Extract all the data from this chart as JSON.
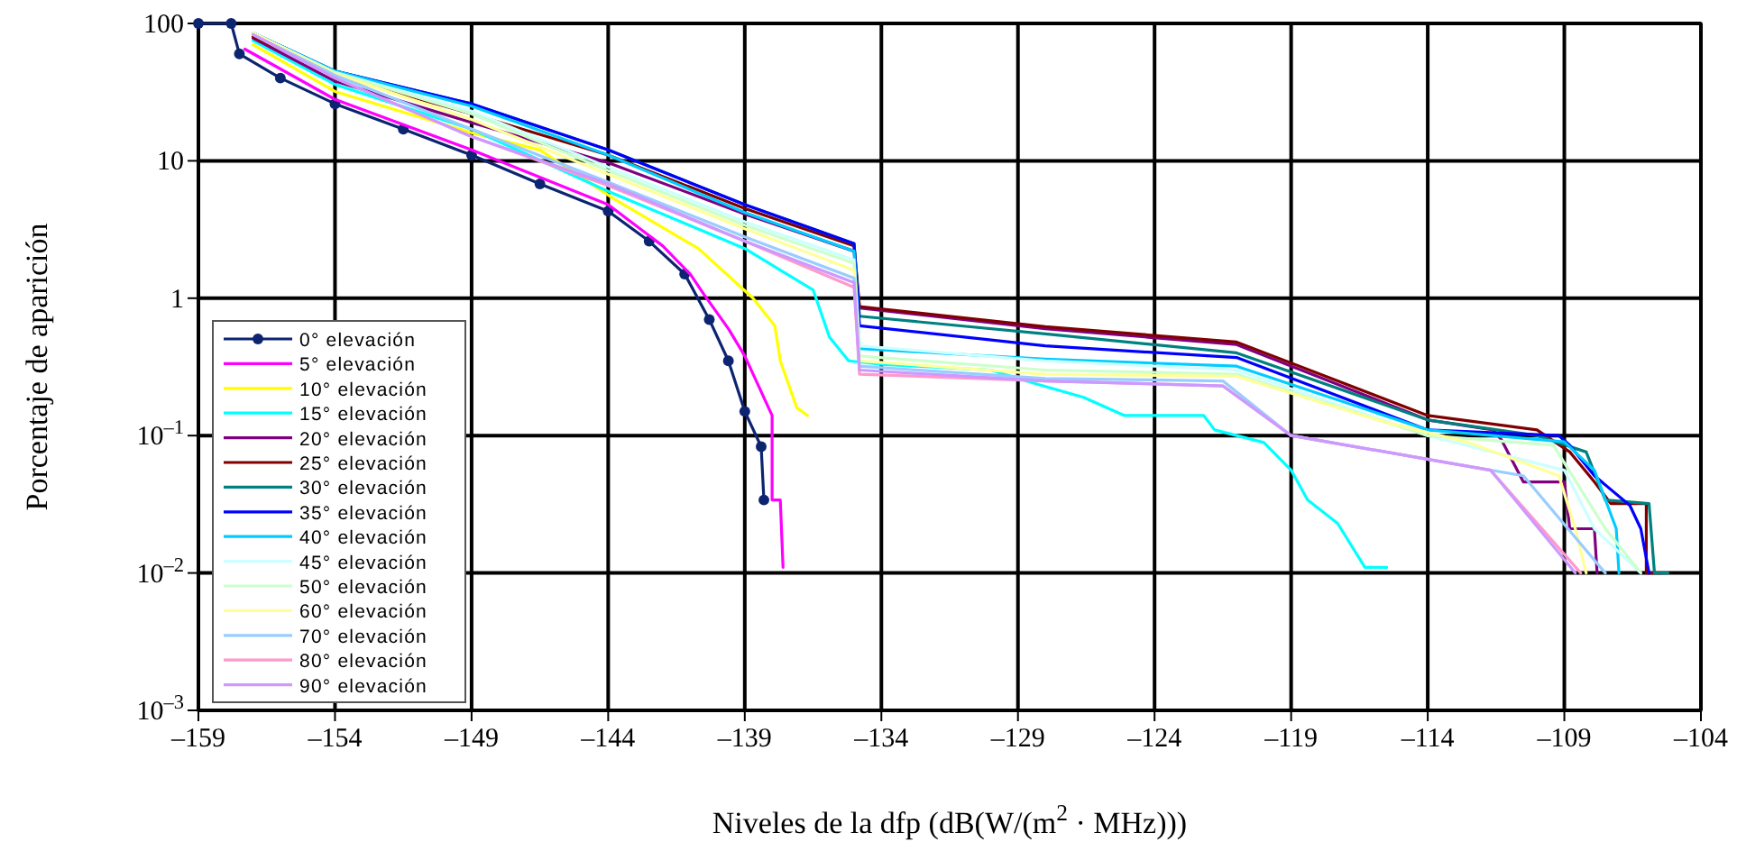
{
  "chart_data": {
    "type": "line",
    "xlabel": "Niveles de la dfp (dB(W/(m$^{2}$ · MHz)))",
    "ylabel": "Porcentaje de aparición",
    "log": "y",
    "grid": true,
    "legend": "left",
    "line_style": "solid",
    "xlim": [
      -159,
      -104
    ],
    "ylim": [
      0.001,
      100
    ],
    "xticks": [
      {
        "value": -159,
        "label": "–159"
      },
      {
        "value": -154,
        "label": "–154"
      },
      {
        "value": -149,
        "label": "–149"
      },
      {
        "value": -144,
        "label": "–144"
      },
      {
        "value": -139,
        "label": "–139"
      },
      {
        "value": -134,
        "label": "–134"
      },
      {
        "value": -129,
        "label": "–129"
      },
      {
        "value": -124,
        "label": "–124"
      },
      {
        "value": -119,
        "label": "–119"
      },
      {
        "value": -114,
        "label": "–114"
      },
      {
        "value": -109,
        "label": "–109"
      },
      {
        "value": -104,
        "label": "–104"
      }
    ],
    "yticks": [
      {
        "value": 0.001,
        "label": "10$^{–3}$"
      },
      {
        "value": 0.01,
        "label": "10$^{–2}$"
      },
      {
        "value": 0.1,
        "label": "10$^{–1}$"
      },
      1,
      10,
      100
    ],
    "series": [
      {
        "name": "0° elevación",
        "color": "#0d2470",
        "marker": "circle",
        "x": [
          -159,
          -157.8,
          -157.5,
          -156,
          -154,
          -151.5,
          -149,
          -146.5,
          -144,
          -142.5,
          -141.2,
          -140.3,
          -139.6,
          -139,
          -138.4,
          -138.3
        ],
        "values": [
          100,
          100,
          60,
          40,
          26,
          17,
          11,
          6.8,
          4.3,
          2.6,
          1.5,
          0.7,
          0.35,
          0.15,
          0.083,
          0.034
        ]
      },
      {
        "name": "5° elevación",
        "color": "#ff00ff",
        "x": [
          -157.3,
          -154,
          -149,
          -144,
          -142,
          -141,
          -140.5,
          -139.6,
          -139,
          -138,
          -138,
          -137.7,
          -137.6
        ],
        "values": [
          65,
          28,
          12,
          4.8,
          2.4,
          1.5,
          1.07,
          0.6,
          0.38,
          0.14,
          0.034,
          0.034,
          0.011
        ]
      },
      {
        "name": "10° elevación",
        "color": "#ffff00",
        "x": [
          -157,
          -154,
          -149,
          -146.5,
          -143.8,
          -140.7,
          -138.7,
          -137.9,
          -137.7,
          -137.1,
          -136.7
        ],
        "values": [
          70,
          32,
          16,
          12,
          5.3,
          2.3,
          1.0,
          0.63,
          0.35,
          0.16,
          0.14
        ]
      },
      {
        "name": "15° elevación",
        "color": "#00ffff",
        "x": [
          -157,
          -154,
          -149,
          -144,
          -139,
          -137.7,
          -136.5,
          -135.9,
          -135.2,
          -134,
          -130,
          -128.4,
          -126.6,
          -125.1,
          -122.2,
          -121.8,
          -120,
          -119,
          -118.4,
          -117.3,
          -116.3,
          -115.5
        ],
        "values": [
          75,
          36,
          17,
          6,
          2.3,
          1.6,
          1.15,
          0.52,
          0.35,
          0.33,
          0.3,
          0.24,
          0.19,
          0.14,
          0.14,
          0.11,
          0.089,
          0.056,
          0.034,
          0.023,
          0.011,
          0.011
        ]
      },
      {
        "name": "20° elevación",
        "color": "#800080",
        "x": [
          -157,
          -154,
          -149,
          -144,
          -139,
          -135,
          -134.8,
          -128,
          -121,
          -114,
          -111.6,
          -111.3,
          -110.5,
          -109,
          -108.8,
          -107.9,
          -107.8
        ],
        "values": [
          78,
          38,
          19,
          9.7,
          4.1,
          2.2,
          0.85,
          0.6,
          0.46,
          0.13,
          0.11,
          0.093,
          0.046,
          0.046,
          0.021,
          0.021,
          0.01
        ]
      },
      {
        "name": "25° elevación",
        "color": "#800000",
        "x": [
          -157,
          -154,
          -149,
          -144,
          -139,
          -135,
          -134.8,
          -128,
          -121,
          -114,
          -110,
          -108.8,
          -107.9,
          -107.3,
          -106,
          -106,
          -105.4
        ],
        "values": [
          80,
          42,
          22,
          11,
          4.5,
          2.4,
          0.87,
          0.62,
          0.48,
          0.14,
          0.11,
          0.076,
          0.046,
          0.032,
          0.032,
          0.01,
          0.01
        ]
      },
      {
        "name": "30° elevación",
        "color": "#008080",
        "x": [
          -157,
          -154,
          -149,
          -144,
          -139,
          -135,
          -134.8,
          -128,
          -121,
          -114,
          -110,
          -108.2,
          -107.5,
          -105.9,
          -105.7,
          -105.2
        ],
        "values": [
          85,
          45,
          26,
          12,
          4.8,
          2.5,
          0.74,
          0.55,
          0.4,
          0.13,
          0.1,
          0.076,
          0.034,
          0.032,
          0.01,
          0.01
        ]
      },
      {
        "name": "35° elevación",
        "color": "#0000ff",
        "x": [
          -157,
          -154,
          -149,
          -144,
          -139,
          -135,
          -134.8,
          -128,
          -121,
          -114,
          -109.2,
          -108.8,
          -107.9,
          -106.6,
          -106.2,
          -105.9
        ],
        "values": [
          85,
          45,
          26,
          12,
          4.8,
          2.5,
          0.63,
          0.45,
          0.37,
          0.11,
          0.1,
          0.085,
          0.051,
          0.031,
          0.021,
          0.01
        ]
      },
      {
        "name": "40° elevación",
        "color": "#00ccff",
        "x": [
          -157,
          -154,
          -149,
          -144,
          -139,
          -135,
          -134.8,
          -128,
          -121,
          -114,
          -109,
          -107.9,
          -107.1,
          -107
        ],
        "values": [
          85,
          45,
          25,
          11,
          4.2,
          2.2,
          0.43,
          0.36,
          0.32,
          0.11,
          0.09,
          0.056,
          0.021,
          0.01
        ]
      },
      {
        "name": "45° elevación",
        "color": "#ccffff",
        "x": [
          -157,
          -154,
          -149,
          -144,
          -139,
          -135,
          -134.8,
          -128,
          -121,
          -114,
          -109,
          -107.9,
          -106.2
        ],
        "values": [
          85,
          44,
          23,
          9,
          3.6,
          1.9,
          0.45,
          0.35,
          0.3,
          0.1,
          0.056,
          0.021,
          0.01
        ]
      },
      {
        "name": "50° elevación",
        "color": "#ccffcc",
        "x": [
          -157,
          -154,
          -149,
          -144,
          -139,
          -135,
          -134.8,
          -128,
          -121,
          -114,
          -109.4,
          -107.5,
          -106.2
        ],
        "values": [
          85,
          44,
          22,
          8.5,
          3.4,
          1.8,
          0.38,
          0.3,
          0.28,
          0.1,
          0.085,
          0.021,
          0.01
        ]
      },
      {
        "name": "60° elevación",
        "color": "#ffff99",
        "x": [
          -157,
          -154,
          -149,
          -144,
          -139,
          -135,
          -134.8,
          -128,
          -121,
          -115.6,
          -112.5,
          -109.2,
          -108.6,
          -108.2
        ],
        "values": [
          85,
          43,
          20,
          8,
          3.2,
          1.6,
          0.35,
          0.28,
          0.27,
          0.126,
          0.089,
          0.051,
          0.021,
          0.01
        ]
      },
      {
        "name": "70° elevación",
        "color": "#99ccff",
        "x": [
          -157,
          -154,
          -149,
          -144,
          -139,
          -135,
          -134.8,
          -128,
          -121.5,
          -119,
          -110.5,
          -107.5
        ],
        "values": [
          83,
          42,
          17,
          7,
          2.8,
          1.4,
          0.32,
          0.26,
          0.25,
          0.1,
          0.051,
          0.01
        ]
      },
      {
        "name": "80° elevación",
        "color": "#ff99cc",
        "x": [
          -157,
          -154,
          -149,
          -144,
          -139,
          -135,
          -134.8,
          -128,
          -121.5,
          -119,
          -111.7,
          -108.4
        ],
        "values": [
          83,
          40,
          15,
          6.6,
          2.6,
          1.2,
          0.28,
          0.25,
          0.23,
          0.1,
          0.056,
          0.01
        ]
      },
      {
        "name": "90° elevación",
        "color": "#cc99ff",
        "x": [
          -157,
          -154,
          -149,
          -144,
          -139,
          -135,
          -134.8,
          -128,
          -121.5,
          -119,
          -111.7,
          -108.6
        ],
        "values": [
          83,
          40,
          15,
          6.8,
          2.6,
          1.3,
          0.3,
          0.25,
          0.23,
          0.1,
          0.056,
          0.01
        ]
      }
    ]
  }
}
